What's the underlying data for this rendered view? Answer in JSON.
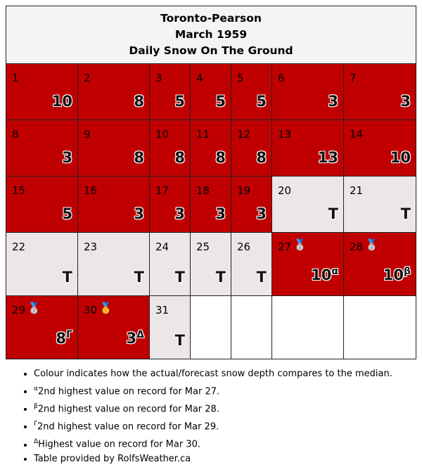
{
  "header": {
    "station": "Toronto-Pearson",
    "period": "March 1959",
    "metric": "Daily Snow On The Ground"
  },
  "colors": {
    "above_median": "#c00000",
    "near_trace": "#ede6e8",
    "empty": "#ffffff",
    "header_bg": "#f4f4f4"
  },
  "weeks": [
    [
      {
        "day": "1",
        "value": "10",
        "level": "red"
      },
      {
        "day": "2",
        "value": "8",
        "level": "red"
      },
      {
        "day": "3",
        "value": "5",
        "level": "red"
      },
      {
        "day": "4",
        "value": "5",
        "level": "red"
      },
      {
        "day": "5",
        "value": "5",
        "level": "red"
      },
      {
        "day": "6",
        "value": "3",
        "level": "red"
      },
      {
        "day": "7",
        "value": "3",
        "level": "red"
      }
    ],
    [
      {
        "day": "8",
        "value": "3",
        "level": "red"
      },
      {
        "day": "9",
        "value": "8",
        "level": "red"
      },
      {
        "day": "10",
        "value": "8",
        "level": "red"
      },
      {
        "day": "11",
        "value": "8",
        "level": "red"
      },
      {
        "day": "12",
        "value": "8",
        "level": "red"
      },
      {
        "day": "13",
        "value": "13",
        "level": "red"
      },
      {
        "day": "14",
        "value": "10",
        "level": "red"
      }
    ],
    [
      {
        "day": "15",
        "value": "5",
        "level": "red"
      },
      {
        "day": "16",
        "value": "3",
        "level": "red"
      },
      {
        "day": "17",
        "value": "3",
        "level": "red"
      },
      {
        "day": "18",
        "value": "3",
        "level": "red"
      },
      {
        "day": "19",
        "value": "3",
        "level": "red"
      },
      {
        "day": "20",
        "value": "T",
        "level": "light"
      },
      {
        "day": "21",
        "value": "T",
        "level": "light"
      }
    ],
    [
      {
        "day": "22",
        "value": "T",
        "level": "light"
      },
      {
        "day": "23",
        "value": "T",
        "level": "light"
      },
      {
        "day": "24",
        "value": "T",
        "level": "light"
      },
      {
        "day": "25",
        "value": "T",
        "level": "light"
      },
      {
        "day": "26",
        "value": "T",
        "level": "light"
      },
      {
        "day": "27",
        "value": "10",
        "sup": "α",
        "medal": "silver-medal-icon",
        "level": "red"
      },
      {
        "day": "28",
        "value": "10",
        "sup": "β",
        "medal": "silver-medal-icon",
        "level": "red"
      }
    ],
    [
      {
        "day": "29",
        "value": "8",
        "sup": "Γ",
        "medal": "silver-medal-icon",
        "level": "red"
      },
      {
        "day": "30",
        "value": "3",
        "sup": "Δ",
        "medal": "gold-medal-icon",
        "level": "red"
      },
      {
        "day": "31",
        "value": "T",
        "level": "light"
      },
      {
        "day": "",
        "value": "",
        "level": "empty"
      },
      {
        "day": "",
        "value": "",
        "level": "empty"
      },
      {
        "day": "",
        "value": "",
        "level": "empty"
      },
      {
        "day": "",
        "value": "",
        "level": "empty"
      }
    ]
  ],
  "notes": [
    {
      "sup": "",
      "text": "Colour indicates how the actual/forecast snow depth compares to the median."
    },
    {
      "sup": "α",
      "text": "2nd highest value on record for Mar 27."
    },
    {
      "sup": "β",
      "text": "2nd highest value on record for Mar 28."
    },
    {
      "sup": "Γ",
      "text": "2nd highest value on record for Mar 29."
    },
    {
      "sup": "Δ",
      "text": "Highest value on record for Mar 30."
    },
    {
      "sup": "",
      "text": "Table provided by RolfsWeather.ca"
    }
  ]
}
